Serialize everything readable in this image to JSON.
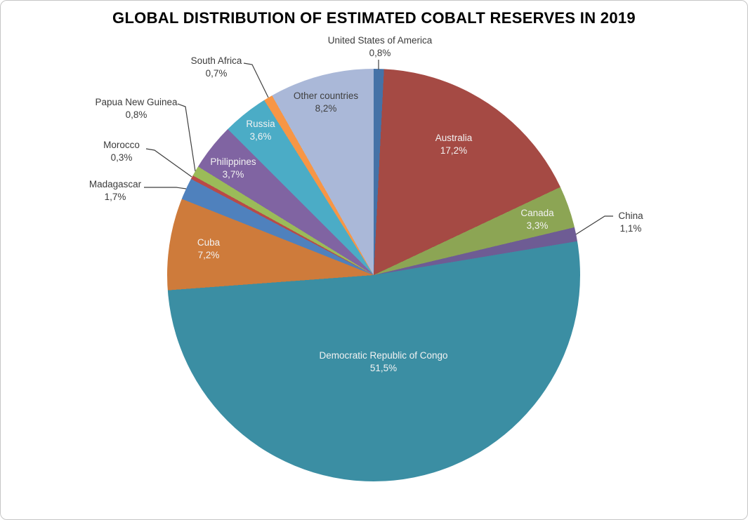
{
  "title": "GLOBAL DISTRIBUTION OF ESTIMATED COBALT RESERVES IN 2019",
  "chart_data": {
    "type": "pie",
    "title": "GLOBAL DISTRIBUTION OF ESTIMATED COBALT RESERVES IN 2019",
    "unit": "%",
    "decimal_separator": ",",
    "start_angle_deg": 0,
    "direction": "clockwise",
    "legend": "none",
    "slices": [
      {
        "label": "United States of America",
        "value": 0.8,
        "display": "0,8%",
        "color": "#4572A7",
        "label_placement": "outside"
      },
      {
        "label": "Australia",
        "value": 17.2,
        "display": "17,2%",
        "color": "#A54A44",
        "label_placement": "inside"
      },
      {
        "label": "Canada",
        "value": 3.3,
        "display": "3,3%",
        "color": "#8CA554",
        "label_placement": "inside"
      },
      {
        "label": "China",
        "value": 1.1,
        "display": "1,1%",
        "color": "#6E5C94",
        "label_placement": "outside"
      },
      {
        "label": "Democratic Republic of Congo",
        "value": 51.5,
        "display": "51,5%",
        "color": "#3B8EA3",
        "label_placement": "inside"
      },
      {
        "label": "Cuba",
        "value": 7.2,
        "display": "7,2%",
        "color": "#CE7B3B",
        "label_placement": "inside"
      },
      {
        "label": "Madagascar",
        "value": 1.7,
        "display": "1,7%",
        "color": "#4F81BD",
        "label_placement": "outside"
      },
      {
        "label": "Morocco",
        "value": 0.3,
        "display": "0,3%",
        "color": "#B94A47",
        "label_placement": "outside"
      },
      {
        "label": "Papua New Guinea",
        "value": 0.8,
        "display": "0,8%",
        "color": "#9BBB59",
        "label_placement": "outside"
      },
      {
        "label": "Philippines",
        "value": 3.7,
        "display": "3,7%",
        "color": "#8064A2",
        "label_placement": "inside"
      },
      {
        "label": "Russia",
        "value": 3.6,
        "display": "3,6%",
        "color": "#4BACC6",
        "label_placement": "inside"
      },
      {
        "label": "South Africa",
        "value": 0.7,
        "display": "0,7%",
        "color": "#F79646",
        "label_placement": "outside"
      },
      {
        "label": "Other countries",
        "value": 8.2,
        "display": "8,2%",
        "color": "#AAB8D8",
        "label_placement": "inside",
        "text_color": "#3F3F3F"
      }
    ],
    "leader_line_color": "#3F3F3F"
  }
}
